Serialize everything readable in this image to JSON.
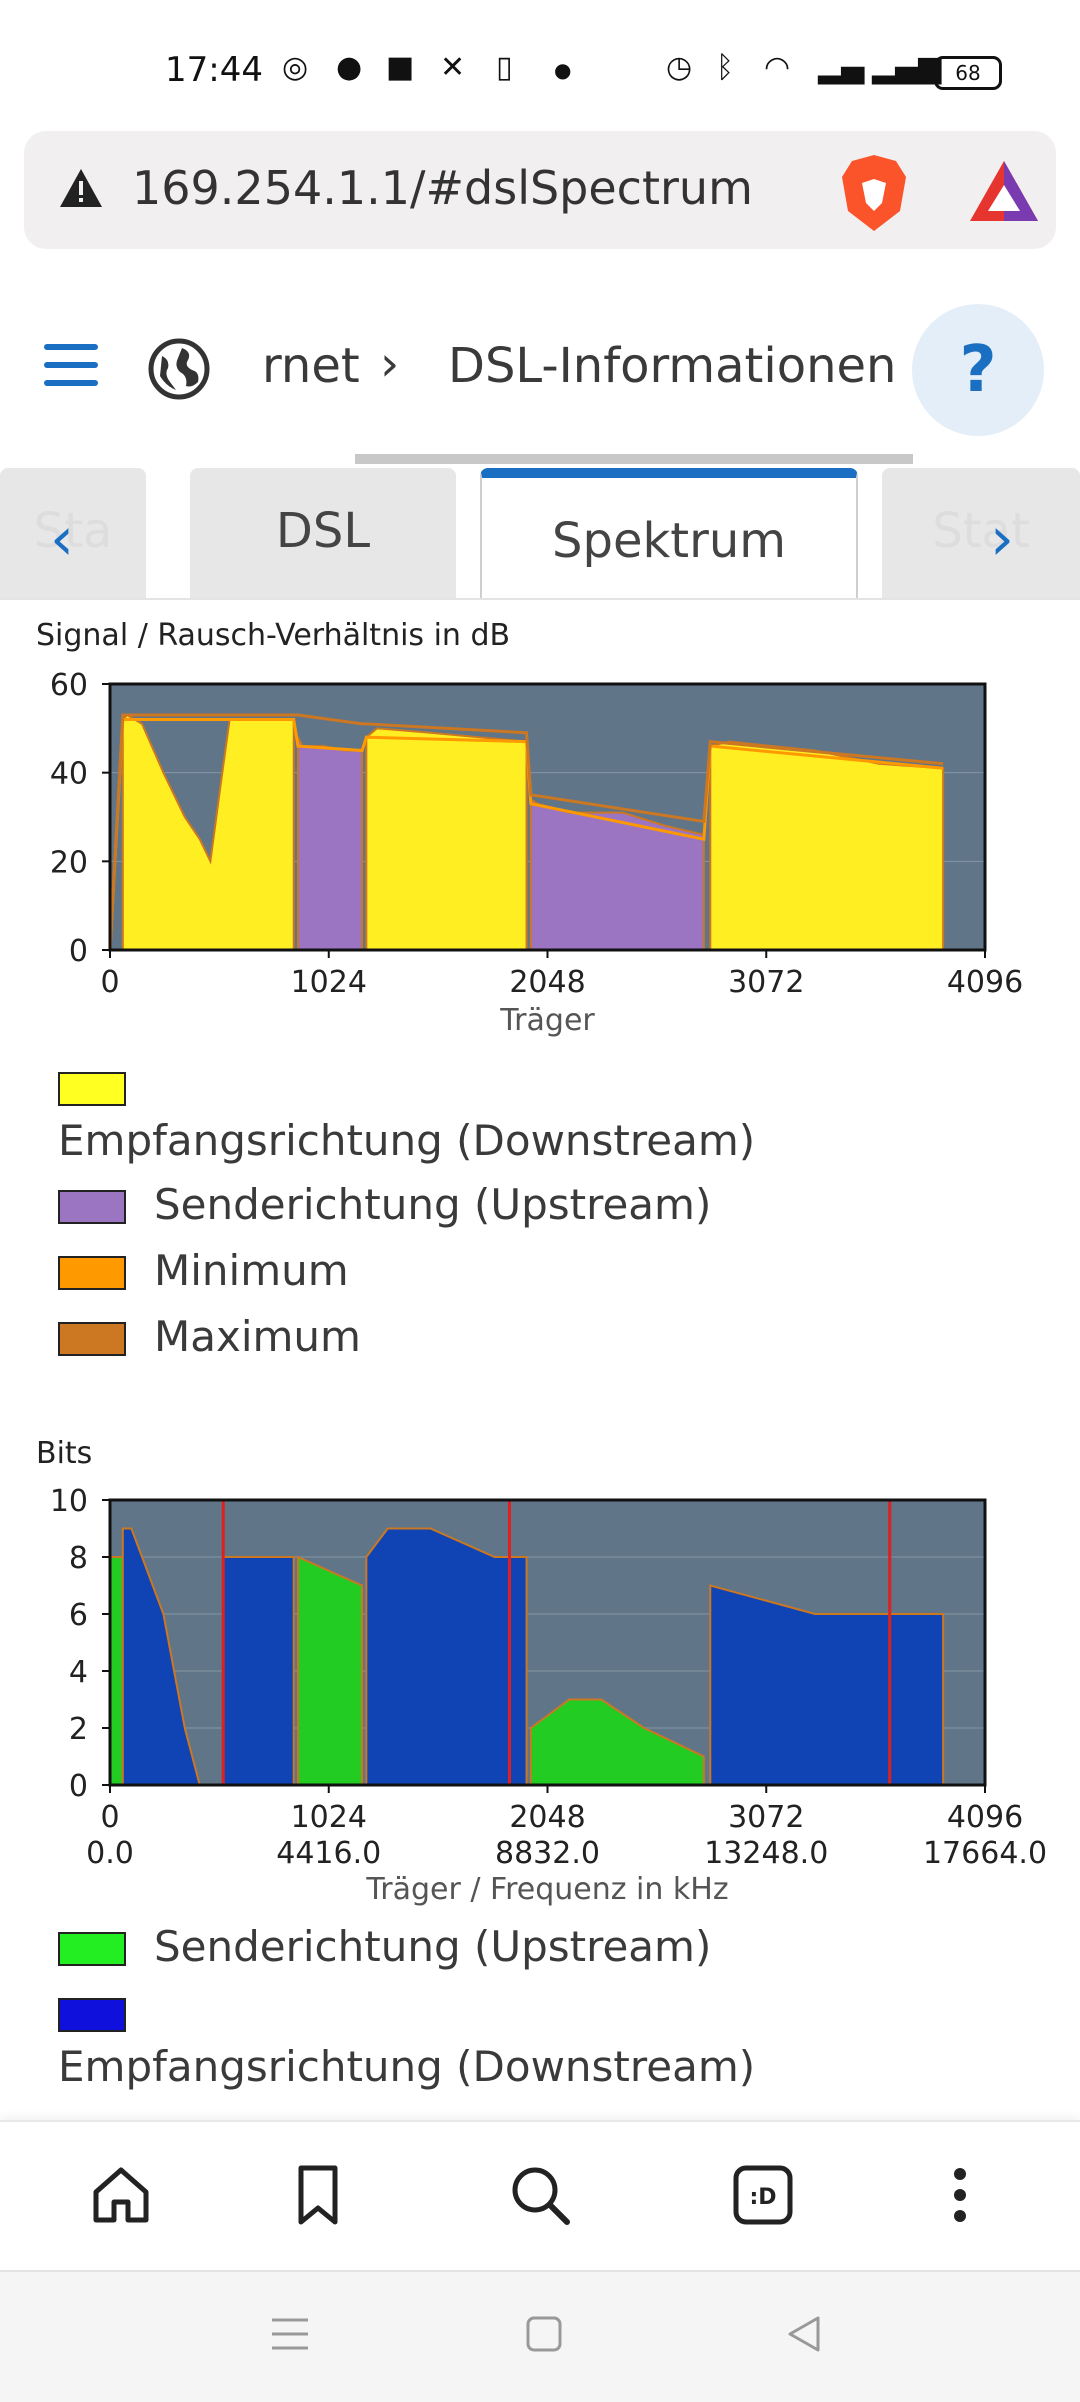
{
  "status_bar": {
    "time": "17:44",
    "battery": "68",
    "icons": [
      "whatsapp-icon",
      "moto-icon",
      "app-icon",
      "tool-icon",
      "parking-icon",
      "dot-icon",
      "alarm-icon",
      "bluetooth-icon",
      "wifi-icon",
      "signal1-icon",
      "signal2-icon"
    ]
  },
  "url_bar": {
    "url": "169.254.1.1/#dslSpectrum"
  },
  "header": {
    "crumb_prev": "rnet",
    "crumb_sep": "›",
    "crumb_current": "DSL-Informationen",
    "help": "?"
  },
  "tabs": {
    "items": [
      {
        "label": "Sta"
      },
      {
        "label": "DSL"
      },
      {
        "label": "Spektrum"
      },
      {
        "label": "Stat"
      }
    ]
  },
  "colors": {
    "downstream_snr": "#ffee22",
    "upstream_snr": "#9b74c2",
    "minimum": "#ff9900",
    "maximum": "#cc7722",
    "plot_bg": "#607587",
    "upstream_bits": "#22cc22",
    "downstream_bits": "#1044b4",
    "marker": "#e02020"
  },
  "snr_legend": {
    "downstream": "Empfangsrichtung (Downstream)",
    "upstream": "Senderichtung (Upstream)",
    "minimum": "Minimum",
    "maximum": "Maximum"
  },
  "bits_legend": {
    "upstream": "Senderichtung (Upstream)",
    "downstream": "Empfangsrichtung (Downstream)"
  },
  "chart_data": [
    {
      "type": "area",
      "title": "Signal / Rausch-Verhältnis in dB",
      "xlabel": "Träger",
      "ylabel": "",
      "xlim": [
        0,
        4096
      ],
      "ylim": [
        0,
        60
      ],
      "x_ticks": [
        "0",
        "1024",
        "2048",
        "3072",
        "4096"
      ],
      "y_ticks": [
        "0",
        "20",
        "40",
        "60"
      ],
      "series": [
        {
          "name": "Empfangsrichtung (Downstream)",
          "segments": [
            {
              "x": [
                60,
                80,
                150,
                250,
                350,
                420,
                470,
                520,
                560,
                860
              ],
              "y": [
                52,
                53,
                51,
                40,
                30,
                25,
                20,
                38,
                52,
                52
              ]
            },
            {
              "x": [
                1200,
                1250,
                1500,
                1950
              ],
              "y": [
                48,
                50,
                49,
                47
              ]
            },
            {
              "x": [
                2810,
                2900,
                3300,
                3600,
                3900
              ],
              "y": [
                46,
                47,
                45,
                42,
                41
              ]
            }
          ]
        },
        {
          "name": "Senderichtung (Upstream)",
          "segments": [
            {
              "x": [
                880,
                900,
                1000,
                1100,
                1180
              ],
              "y": [
                48,
                46,
                46,
                45,
                45
              ]
            },
            {
              "x": [
                1970,
                2000,
                2150,
                2400,
                2600,
                2780
              ],
              "y": [
                34,
                33,
                31,
                31,
                28,
                26
              ]
            }
          ]
        },
        {
          "name": "Minimum",
          "x": [
            0,
            60,
            860,
            880,
            1180,
            1200,
            1950,
            1970,
            2780,
            2810,
            3900
          ],
          "y": [
            0,
            52,
            52,
            46,
            45,
            48,
            47,
            33,
            25,
            46,
            41
          ]
        },
        {
          "name": "Maximum",
          "x": [
            0,
            60,
            860,
            880,
            1180,
            1200,
            1950,
            1970,
            2780,
            2810,
            3900
          ],
          "y": [
            0,
            53,
            53,
            53,
            51,
            51,
            49,
            35,
            29,
            47,
            42
          ]
        }
      ]
    },
    {
      "type": "area",
      "title": "Bits",
      "xlabel": "Träger / Frequenz in kHz",
      "ylabel": "",
      "xlim": [
        0,
        4096
      ],
      "ylim": [
        0,
        10
      ],
      "x_ticks": [
        "0",
        "1024",
        "2048",
        "3072",
        "4096"
      ],
      "x_ticks_secondary": [
        "0.0",
        "4416.0",
        "8832.0",
        "13248.0",
        "17664.0"
      ],
      "y_ticks": [
        "0",
        "2",
        "4",
        "6",
        "8",
        "10"
      ],
      "series": [
        {
          "name": "Senderichtung (Upstream)",
          "segments": [
            {
              "x": [
                0,
                60
              ],
              "y": [
                8,
                8
              ]
            },
            {
              "x": [
                880,
                1180
              ],
              "y": [
                8,
                7
              ]
            },
            {
              "x": [
                1970,
                2150,
                2300,
                2500,
                2780
              ],
              "y": [
                2,
                3,
                3,
                2,
                1
              ]
            }
          ]
        },
        {
          "name": "Empfangsrichtung (Downstream)",
          "segments": [
            {
              "x": [
                60,
                100,
                150,
                250,
                350,
                420
              ],
              "y": [
                9,
                9,
                8,
                6,
                2,
                0
              ]
            },
            {
              "x": [
                530,
                860
              ],
              "y": [
                8,
                8
              ]
            },
            {
              "x": [
                1200,
                1300,
                1500,
                1800,
                1950
              ],
              "y": [
                8,
                9,
                9,
                8,
                8
              ]
            },
            {
              "x": [
                2810,
                3300,
                3900
              ],
              "y": [
                7,
                6,
                6
              ]
            }
          ]
        },
        {
          "name": "Marker",
          "x": [
            530,
            1870,
            3650
          ],
          "y": [
            10,
            10,
            10
          ]
        }
      ]
    }
  ]
}
